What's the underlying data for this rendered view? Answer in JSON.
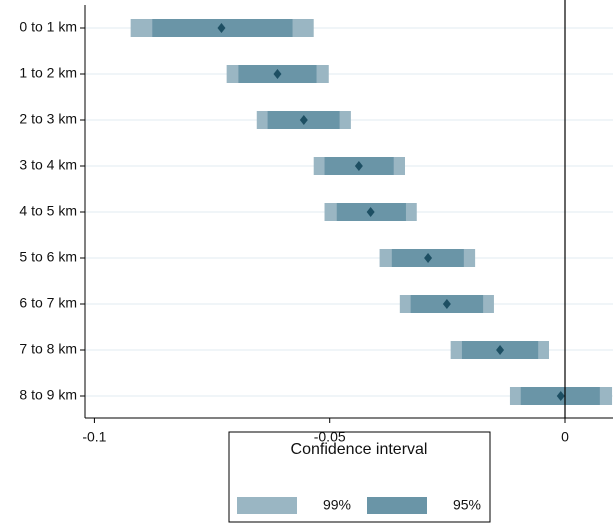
{
  "chart_data": {
    "type": "coefplot",
    "categories": [
      "0 to 1 km",
      "1 to 2 km",
      "2 to 3 km",
      "3 to 4 km",
      "4 to 5 km",
      "5 to 6 km",
      "6 to 7 km",
      "7 to 8 km",
      "8 to 9 km"
    ],
    "estimates": [
      -0.073,
      -0.0611,
      -0.0555,
      -0.0438,
      -0.0413,
      -0.0291,
      -0.0251,
      -0.0138,
      -0.0009
    ],
    "point_color": "#1d4f63",
    "series": [
      {
        "name": "99%",
        "color": "#9ab6c3",
        "low": [
          -0.0923,
          -0.0719,
          -0.0655,
          -0.0534,
          -0.0511,
          -0.0394,
          -0.0351,
          -0.0243,
          -0.0117
        ],
        "high": [
          -0.0534,
          -0.0502,
          -0.0455,
          -0.034,
          -0.0315,
          -0.0191,
          -0.0151,
          -0.0034,
          0.01
        ]
      },
      {
        "name": "95%",
        "color": "#6a95a7",
        "low": [
          -0.0877,
          -0.0694,
          -0.0632,
          -0.0511,
          -0.0485,
          -0.0368,
          -0.0328,
          -0.0219,
          -0.0094
        ],
        "high": [
          -0.0579,
          -0.0528,
          -0.0479,
          -0.0364,
          -0.0338,
          -0.0215,
          -0.0174,
          -0.0057,
          0.0074
        ]
      }
    ],
    "xlim": [
      -0.102,
      0.0102
    ],
    "xticks": [
      -0.1,
      -0.05,
      0
    ],
    "reference_line": 0,
    "grid": true,
    "legend_title": "Confidence interval",
    "legend_position": "bottom"
  }
}
